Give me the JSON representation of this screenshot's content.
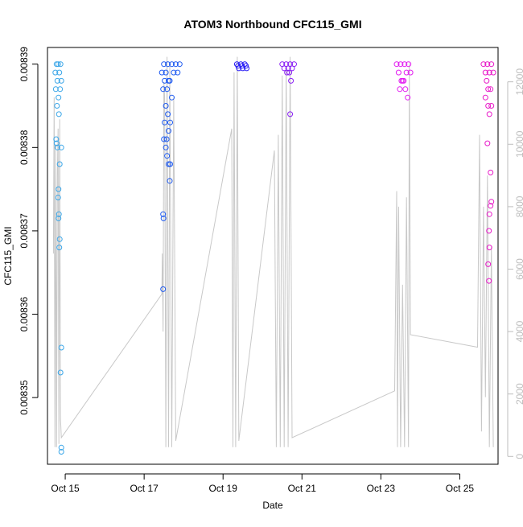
{
  "chart_data": {
    "type": "scatter",
    "title": "ATOM3 Northbound CFC115_GMI",
    "xlabel": "Date",
    "ylabel": "CFC115_GMI",
    "x_ticks": [
      "Oct 15",
      "Oct 17",
      "Oct 19",
      "Oct 21",
      "Oct 23",
      "Oct 25"
    ],
    "x_tick_days": [
      15,
      17,
      19,
      21,
      23,
      25
    ],
    "xlim_days": [
      14.55,
      25.97
    ],
    "y_ticks": [
      "0.00835",
      "0.00836",
      "0.00837",
      "0.00838",
      "0.00839"
    ],
    "y_tick_values": [
      0.00835,
      0.00836,
      0.00837,
      0.00838,
      0.00839
    ],
    "ylim": [
      0.008342,
      0.008392
    ],
    "y2_ticks": [
      "0",
      "2000",
      "4000",
      "6000",
      "8000",
      "10000",
      "12000"
    ],
    "y2_tick_values": [
      0,
      2000,
      4000,
      6000,
      8000,
      10000,
      12000
    ],
    "y2lim": [
      -250,
      13100
    ],
    "colors": {
      "flight1": "#3aa6e8",
      "flight2": "#1e5af0",
      "flight3": "#2a1ef5",
      "flight4": "#8a1ef5",
      "flight5": "#e21ef0",
      "flight6": "#e818c8",
      "altitude_line": "#c8c8c8",
      "axis": "#000000",
      "right_axis": "#bebebe"
    },
    "series": [
      {
        "color_key": "flight1",
        "points": [
          [
            14.75,
            0.008389
          ],
          [
            14.78,
            0.00839
          ],
          [
            14.8,
            0.008388
          ],
          [
            14.82,
            0.00839
          ],
          [
            14.85,
            0.008389
          ],
          [
            14.88,
            0.00839
          ],
          [
            14.9,
            0.008388
          ],
          [
            14.76,
            0.008387
          ],
          [
            14.83,
            0.008386
          ],
          [
            14.87,
            0.008387
          ],
          [
            14.79,
            0.008385
          ],
          [
            14.84,
            0.008384
          ],
          [
            14.77,
            0.008381
          ],
          [
            14.78,
            0.0083805
          ],
          [
            14.8,
            0.00838
          ],
          [
            14.9,
            0.00838
          ],
          [
            14.86,
            0.008378
          ],
          [
            14.83,
            0.008375
          ],
          [
            14.82,
            0.008374
          ],
          [
            14.84,
            0.008372
          ],
          [
            14.83,
            0.0083715
          ],
          [
            14.86,
            0.008369
          ],
          [
            14.85,
            0.008368
          ],
          [
            14.9,
            0.008356
          ],
          [
            14.88,
            0.008353
          ],
          [
            14.9,
            0.008344
          ],
          [
            14.9,
            0.0083435
          ]
        ]
      },
      {
        "color_key": "flight2",
        "points": [
          [
            17.45,
            0.008389
          ],
          [
            17.5,
            0.00839
          ],
          [
            17.55,
            0.008389
          ],
          [
            17.6,
            0.00839
          ],
          [
            17.65,
            0.008388
          ],
          [
            17.7,
            0.00839
          ],
          [
            17.75,
            0.008389
          ],
          [
            17.8,
            0.00839
          ],
          [
            17.85,
            0.008389
          ],
          [
            17.9,
            0.00839
          ],
          [
            17.52,
            0.008388
          ],
          [
            17.58,
            0.008387
          ],
          [
            17.62,
            0.008388
          ],
          [
            17.48,
            0.008387
          ],
          [
            17.7,
            0.008386
          ],
          [
            17.55,
            0.008385
          ],
          [
            17.6,
            0.008384
          ],
          [
            17.52,
            0.008383
          ],
          [
            17.66,
            0.008383
          ],
          [
            17.62,
            0.008382
          ],
          [
            17.5,
            0.008381
          ],
          [
            17.57,
            0.008381
          ],
          [
            17.55,
            0.00838
          ],
          [
            17.58,
            0.008379
          ],
          [
            17.62,
            0.008378
          ],
          [
            17.66,
            0.008378
          ],
          [
            17.65,
            0.008376
          ],
          [
            17.48,
            0.008372
          ],
          [
            17.49,
            0.0083715
          ],
          [
            17.48,
            0.008363
          ]
        ]
      },
      {
        "color_key": "flight3",
        "points": [
          [
            19.35,
            0.00839
          ],
          [
            19.4,
            0.0083895
          ],
          [
            19.45,
            0.00839
          ],
          [
            19.5,
            0.0083895
          ],
          [
            19.55,
            0.00839
          ],
          [
            19.6,
            0.0083895
          ],
          [
            19.38,
            0.0083898
          ],
          [
            19.48,
            0.0083898
          ],
          [
            19.58,
            0.0083898
          ]
        ]
      },
      {
        "color_key": "flight4",
        "points": [
          [
            20.5,
            0.00839
          ],
          [
            20.55,
            0.0083895
          ],
          [
            20.6,
            0.00839
          ],
          [
            20.65,
            0.0083895
          ],
          [
            20.7,
            0.00839
          ],
          [
            20.75,
            0.0083895
          ],
          [
            20.8,
            0.00839
          ],
          [
            20.62,
            0.008389
          ],
          [
            20.68,
            0.008389
          ],
          [
            20.72,
            0.008388
          ],
          [
            20.7,
            0.008384
          ]
        ]
      },
      {
        "color_key": "flight5",
        "points": [
          [
            23.4,
            0.00839
          ],
          [
            23.45,
            0.008389
          ],
          [
            23.5,
            0.00839
          ],
          [
            23.55,
            0.008388
          ],
          [
            23.6,
            0.00839
          ],
          [
            23.65,
            0.008389
          ],
          [
            23.7,
            0.00839
          ],
          [
            23.75,
            0.008389
          ],
          [
            23.48,
            0.008387
          ],
          [
            23.58,
            0.008388
          ],
          [
            23.62,
            0.008387
          ],
          [
            23.68,
            0.008386
          ],
          [
            23.52,
            0.008388
          ]
        ]
      },
      {
        "color_key": "flight6",
        "points": [
          [
            25.6,
            0.00839
          ],
          [
            25.65,
            0.008389
          ],
          [
            25.7,
            0.00839
          ],
          [
            25.75,
            0.008389
          ],
          [
            25.8,
            0.00839
          ],
          [
            25.85,
            0.008389
          ],
          [
            25.68,
            0.008388
          ],
          [
            25.72,
            0.008387
          ],
          [
            25.78,
            0.008387
          ],
          [
            25.65,
            0.008386
          ],
          [
            25.72,
            0.008385
          ],
          [
            25.8,
            0.008385
          ],
          [
            25.75,
            0.008384
          ],
          [
            25.7,
            0.0083805
          ],
          [
            25.78,
            0.008377
          ],
          [
            25.8,
            0.0083735
          ],
          [
            25.78,
            0.008373
          ],
          [
            25.75,
            0.008372
          ],
          [
            25.74,
            0.00837
          ],
          [
            25.75,
            0.008368
          ],
          [
            25.72,
            0.008366
          ],
          [
            25.74,
            0.008364
          ]
        ]
      }
    ],
    "altitude_line": [
      [
        14.7,
        6500
      ],
      [
        14.72,
        11500
      ],
      [
        14.74,
        300
      ],
      [
        14.76,
        10000
      ],
      [
        14.78,
        300
      ],
      [
        14.8,
        9000
      ],
      [
        14.82,
        10500
      ],
      [
        14.84,
        400
      ],
      [
        14.86,
        10800
      ],
      [
        14.88,
        1200
      ],
      [
        14.9,
        600
      ],
      [
        17.45,
        5200
      ],
      [
        17.46,
        6500
      ],
      [
        17.48,
        4000
      ],
      [
        17.5,
        12000
      ],
      [
        17.52,
        11500
      ],
      [
        17.55,
        300
      ],
      [
        17.58,
        12800
      ],
      [
        17.62,
        300
      ],
      [
        17.65,
        12500
      ],
      [
        17.7,
        300
      ],
      [
        17.75,
        11500
      ],
      [
        17.8,
        500
      ],
      [
        19.22,
        10500
      ],
      [
        19.25,
        300
      ],
      [
        19.28,
        12300
      ],
      [
        19.32,
        300
      ],
      [
        19.36,
        12800
      ],
      [
        19.4,
        500
      ],
      [
        20.3,
        9800
      ],
      [
        20.35,
        300
      ],
      [
        20.4,
        10300
      ],
      [
        20.45,
        300
      ],
      [
        20.5,
        12200
      ],
      [
        20.55,
        300
      ],
      [
        20.6,
        12500
      ],
      [
        20.65,
        300
      ],
      [
        20.7,
        12800
      ],
      [
        20.75,
        600
      ],
      [
        23.35,
        2100
      ],
      [
        23.4,
        8500
      ],
      [
        23.42,
        300
      ],
      [
        23.45,
        8000
      ],
      [
        23.5,
        300
      ],
      [
        23.55,
        5500
      ],
      [
        23.6,
        300
      ],
      [
        23.65,
        8300
      ],
      [
        23.7,
        300
      ],
      [
        23.72,
        12600
      ],
      [
        23.75,
        3900
      ],
      [
        25.45,
        3500
      ],
      [
        25.5,
        10300
      ],
      [
        25.55,
        800
      ],
      [
        25.6,
        8000
      ],
      [
        25.65,
        1900
      ],
      [
        25.7,
        9000
      ],
      [
        25.75,
        300
      ],
      [
        25.8,
        6700
      ],
      [
        25.85,
        300
      ]
    ]
  }
}
